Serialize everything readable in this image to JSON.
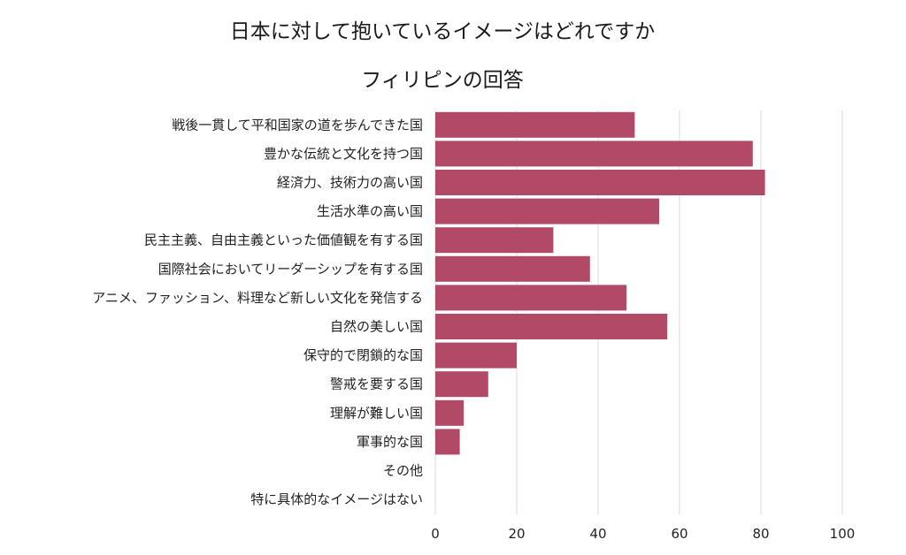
{
  "chart_data": {
    "type": "bar",
    "orientation": "horizontal",
    "title": "日本に対して抱いているイメージはどれですか",
    "subtitle": "フィリピンの回答",
    "categories": [
      "戦後一貫して平和国家の道を歩んできた国",
      "豊かな伝統と文化を持つ国",
      "経済力、技術力の高い国",
      "生活水準の高い国",
      "民主主義、自由主義といった価値観を有する国",
      "国際社会においてリーダーシップを有する国",
      "アニメ、ファッション、料理など新しい文化を発信する",
      "自然の美しい国",
      "保守的で閉鎖的な国",
      "警戒を要する国",
      "理解が難しい国",
      "軍事的な国",
      "その他",
      "特に具体的なイメージはない"
    ],
    "values": [
      49,
      78,
      81,
      55,
      29,
      38,
      47,
      57,
      20,
      13,
      7,
      6,
      0,
      0
    ],
    "xlim": [
      0,
      100
    ],
    "xticks": [
      0,
      20,
      40,
      60,
      80,
      100
    ],
    "xlabel": "",
    "ylabel": "",
    "grid": true,
    "bar_color": "#b04a66"
  }
}
